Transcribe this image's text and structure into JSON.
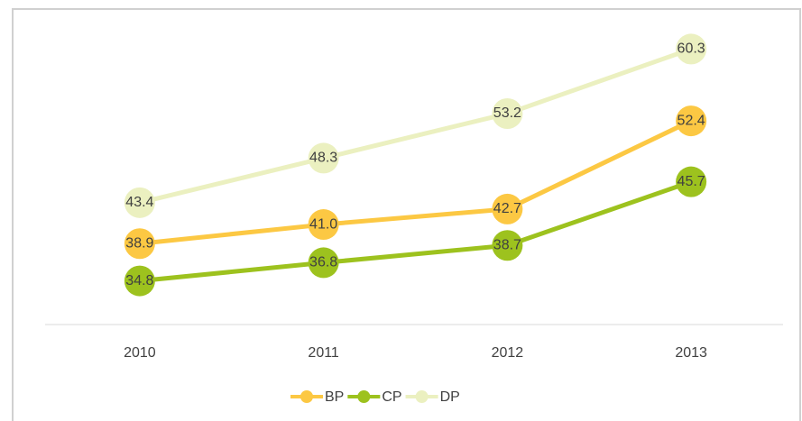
{
  "chart_data": {
    "type": "line",
    "categories": [
      "2010",
      "2011",
      "2012",
      "2013"
    ],
    "series": [
      {
        "name": "BP",
        "color": "#fcc843",
        "values": [
          38.9,
          41.0,
          42.7,
          52.4
        ],
        "value_labels": [
          "38.9",
          "41.0",
          "42.7",
          "52.4"
        ]
      },
      {
        "name": "CP",
        "color": "#9dc21e",
        "values": [
          34.8,
          36.8,
          38.7,
          45.7
        ],
        "value_labels": [
          "34.8",
          "36.8",
          "38.7",
          "45.7"
        ]
      },
      {
        "name": "DP",
        "color": "#ebf0c0",
        "values": [
          43.4,
          48.3,
          53.2,
          60.3
        ],
        "value_labels": [
          "43.4",
          "48.3",
          "53.2",
          "60.3"
        ]
      }
    ],
    "ylim": [
      30,
      65
    ],
    "legend": "bottom"
  }
}
